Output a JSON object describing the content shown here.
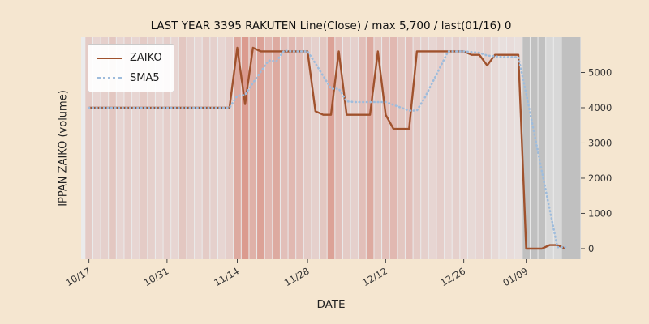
{
  "figure": {
    "title": "LAST YEAR 3395 RAKUTEN Line(Close) / max 5,700 / last(01/16) 0",
    "xlabel": "DATE",
    "ylabel": "IPPAN ZAIKO (volume)",
    "background": "#f5e6d0",
    "plot_background": "#ebebeb"
  },
  "chart_data": {
    "type": "line",
    "title": "LAST YEAR 3395 RAKUTEN Line(Close) / max 5,700 / last(01/16) 0",
    "xlabel": "DATE",
    "ylabel": "IPPAN ZAIKO (volume)",
    "ylim": [
      -300,
      6000
    ],
    "yticks": [
      0,
      1000,
      2000,
      3000,
      4000,
      5000
    ],
    "xticks": [
      "10/17",
      "10/31",
      "11/14",
      "11/28",
      "12/12",
      "12/26",
      "01/09"
    ],
    "xtick_index": [
      0,
      10,
      19,
      28,
      38,
      48,
      56
    ],
    "grid": false,
    "legend_position": "upper-left",
    "max_value": 5700,
    "last_value": 0,
    "last_date": "01/16",
    "dates": [
      "10/17",
      "10/18",
      "10/19",
      "10/20",
      "10/21",
      "10/24",
      "10/25",
      "10/26",
      "10/27",
      "10/28",
      "10/31",
      "11/01",
      "11/02",
      "11/04",
      "11/07",
      "11/08",
      "11/09",
      "11/10",
      "11/11",
      "11/14",
      "11/15",
      "11/16",
      "11/17",
      "11/18",
      "11/21",
      "11/22",
      "11/24",
      "11/25",
      "11/28",
      "11/29",
      "11/30",
      "12/01",
      "12/02",
      "12/05",
      "12/06",
      "12/07",
      "12/08",
      "12/09",
      "12/12",
      "12/13",
      "12/14",
      "12/15",
      "12/16",
      "12/19",
      "12/20",
      "12/21",
      "12/22",
      "12/23",
      "12/26",
      "12/27",
      "12/28",
      "12/29",
      "12/30",
      "01/04",
      "01/05",
      "01/06",
      "01/09",
      "01/10",
      "01/11",
      "01/12",
      "01/13",
      "01/16"
    ],
    "series": [
      {
        "name": "ZAIKO",
        "color": "#a0522d",
        "style": "solid",
        "values": [
          4000,
          4000,
          4000,
          4000,
          4000,
          4000,
          4000,
          4000,
          4000,
          4000,
          4000,
          4000,
          4000,
          4000,
          4000,
          4000,
          4000,
          4000,
          4000,
          5700,
          4100,
          5700,
          5600,
          5600,
          5600,
          5600,
          5600,
          5600,
          5600,
          3900,
          3800,
          3800,
          5600,
          3800,
          3800,
          3800,
          3800,
          5600,
          3800,
          3400,
          3400,
          3400,
          5600,
          5600,
          5600,
          5600,
          5600,
          5600,
          5600,
          5500,
          5500,
          5200,
          5500,
          5500,
          5500,
          5500,
          0,
          0,
          0,
          100,
          100,
          0
        ]
      },
      {
        "name": "SMA5",
        "color": "#9ebcdc",
        "style": "dotted",
        "values": [
          4000,
          4000,
          4000,
          4000,
          4000,
          4000,
          4000,
          4000,
          4000,
          4000,
          4000,
          4000,
          4000,
          4000,
          4000,
          4000,
          4000,
          4000,
          4000,
          4340,
          4360,
          4700,
          5020,
          5340,
          5320,
          5620,
          5600,
          5600,
          5600,
          5260,
          4900,
          4540,
          4540,
          4180,
          4160,
          4160,
          4160,
          4160,
          4160,
          4080,
          4000,
          3920,
          3920,
          4280,
          4720,
          5160,
          5600,
          5600,
          5600,
          5580,
          5560,
          5480,
          5460,
          5440,
          5440,
          5440,
          4400,
          3300,
          2200,
          1120,
          40,
          40
        ]
      }
    ],
    "band_colors": {
      "red": "#cd5a44",
      "gray": "#8c8c8c"
    },
    "gray_from_index": 56,
    "band_alpha": [
      0.22,
      0.15,
      0.18,
      0.25,
      0.15,
      0.2,
      0.15,
      0.22,
      0.18,
      0.15,
      0.2,
      0.15,
      0.25,
      0.18,
      0.15,
      0.22,
      0.18,
      0.15,
      0.2,
      0.45,
      0.55,
      0.4,
      0.5,
      0.35,
      0.45,
      0.3,
      0.35,
      0.3,
      0.22,
      0.18,
      0.25,
      0.5,
      0.3,
      0.22,
      0.18,
      0.3,
      0.45,
      0.25,
      0.3,
      0.35,
      0.25,
      0.3,
      0.22,
      0.18,
      0.15,
      0.2,
      0.15,
      0.18,
      0.15,
      0.12,
      0.15,
      0.18,
      0.12,
      0.08,
      0.1,
      0.08,
      0.45,
      0.45,
      0.45,
      0.2,
      0.2,
      0.45
    ]
  }
}
